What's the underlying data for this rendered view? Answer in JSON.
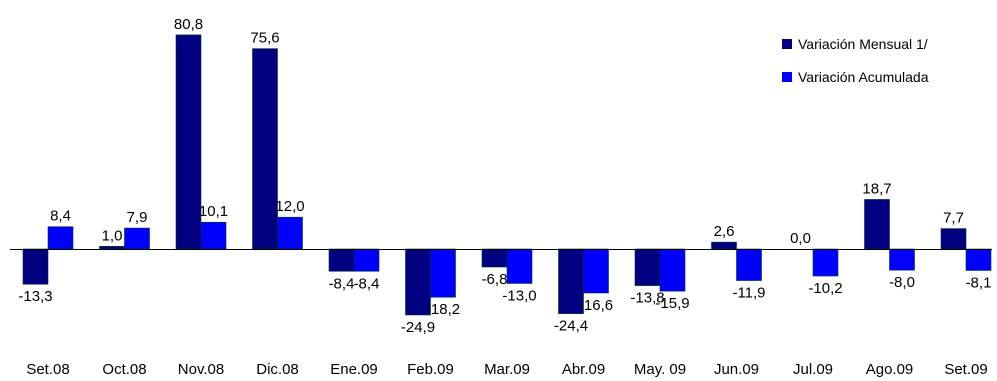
{
  "chart_data": {
    "type": "bar",
    "categories": [
      "Set.08",
      "Oct.08",
      "Nov.08",
      "Dic.08",
      "Ene.09",
      "Feb.09",
      "Mar.09",
      "Abr.09",
      "May. 09",
      "Jun.09",
      "Jul.09",
      "Ago.09",
      "Set.09"
    ],
    "series": [
      {
        "name": "Variación Mensual 1/",
        "color": "#000080",
        "values": [
          -13.3,
          1.0,
          80.8,
          75.6,
          -8.4,
          -24.9,
          -6.8,
          -24.4,
          -13.8,
          2.6,
          0.0,
          18.7,
          7.7
        ],
        "labels": [
          "-13,3",
          "1,0",
          "80,8",
          "75,6",
          "-8,4",
          "-24,9",
          "-6,8",
          "-24,4",
          "-13,8",
          "2,6",
          "0,0",
          "18,7",
          "7,7"
        ]
      },
      {
        "name": "Variación Acumulada",
        "color": "#0000FF",
        "values": [
          8.4,
          7.9,
          10.1,
          12.0,
          -8.4,
          -18.2,
          -13.0,
          -16.6,
          -15.9,
          -11.9,
          -10.2,
          -8.0,
          -8.1
        ],
        "labels": [
          "8,4",
          "7,9",
          "10,1",
          "12,0",
          "-8,4",
          "-18,2",
          "-13,0",
          "-16,6",
          "-15,9",
          "-11,9",
          "-10,2",
          "-8,0",
          "-8,1"
        ]
      }
    ],
    "ylim": [
      -25,
      81
    ],
    "grid": false,
    "legend_position": "top-right"
  }
}
